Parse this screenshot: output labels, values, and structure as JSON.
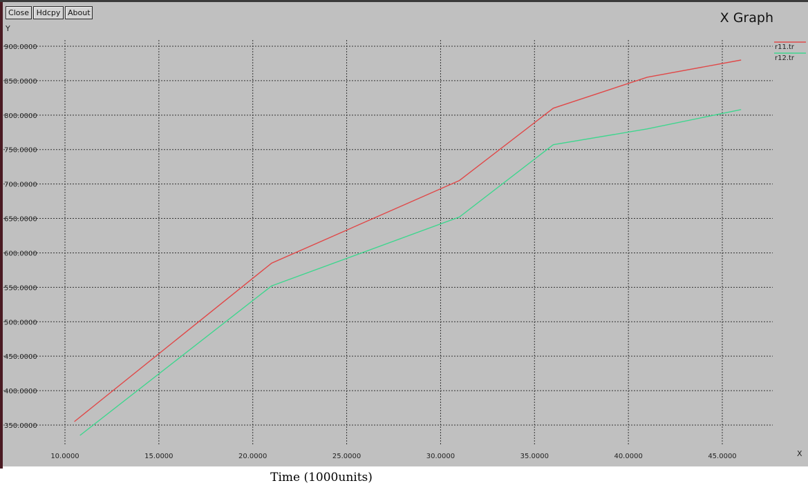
{
  "window": {
    "title": "X Graph",
    "buttons": {
      "close": "Close",
      "hdcpy": "Hdcpy",
      "about": "About"
    }
  },
  "caption": "Time (1000units)",
  "colors": {
    "background": "#c0c0c0",
    "grid": "#333333",
    "axis_text": "#222222"
  },
  "chart_data": {
    "type": "line",
    "title": "X Graph",
    "xlabel": "X",
    "ylabel": "Y",
    "xlim": [
      8.5,
      47.5
    ],
    "ylim": [
      320,
      900
    ],
    "xticks": [
      10,
      15,
      20,
      25,
      30,
      35,
      40,
      45
    ],
    "yticks": [
      350,
      400,
      450,
      500,
      550,
      600,
      650,
      700,
      750,
      800,
      850,
      900
    ],
    "xtick_labels": [
      "10.0000",
      "15.0000",
      "20.0000",
      "25.0000",
      "30.0000",
      "35.0000",
      "40.0000",
      "45.0000"
    ],
    "ytick_labels": [
      "350.0000",
      "400.0000",
      "450.0000",
      "500.0000",
      "550.0000",
      "600.0000",
      "650.0000",
      "700.0000",
      "750.0000",
      "800.0000",
      "850.0000",
      "900.0000"
    ],
    "grid": true,
    "legend_position": "top-right",
    "series": [
      {
        "name": "r11.tr",
        "color": "#e04848",
        "x": [
          10.5,
          21,
          31,
          36,
          41,
          46
        ],
        "y": [
          355,
          585,
          705,
          810,
          855,
          880
        ]
      },
      {
        "name": "r12.tr",
        "color": "#3ed68e",
        "x": [
          10.8,
          21,
          31,
          36,
          41,
          46
        ],
        "y": [
          335,
          552,
          652,
          757,
          780,
          808
        ]
      }
    ]
  }
}
